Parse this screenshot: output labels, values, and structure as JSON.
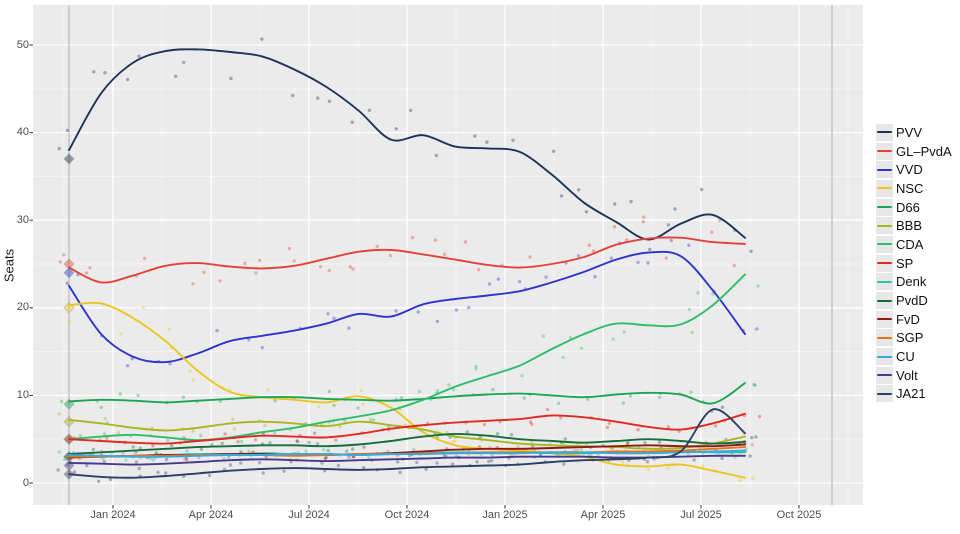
{
  "figure": {
    "background": "#ffffff",
    "panel_background": "#ebebeb",
    "grid_major_color": "#ffffff",
    "grid_minor_color": "#f4f4f4",
    "axis_text_color": "#4d4d4d",
    "tick_mark_color": "#333333",
    "reference_line_color": "#c2c2c2",
    "legend_key_background": "#e7e7e7"
  },
  "chart_data": {
    "type": "line",
    "title": "",
    "xlabel": "",
    "ylabel": "Seats",
    "ylim": [
      -2.5,
      54.5
    ],
    "y_ticks": [
      0,
      10,
      20,
      30,
      40,
      50
    ],
    "x_tick_labels": [
      "Jan 2024",
      "Apr 2024",
      "Jul 2024",
      "Oct 2024",
      "Jan 2025",
      "Apr 2025",
      "Jul 2025",
      "Oct 2025"
    ],
    "grid": "on",
    "legend_position": "right",
    "notes_markers": "diamond markers at left edge show Nov 2023 election result; faint dots are individual polls; two gray vertical reference lines mark election dates",
    "months": [
      "Nov 2023",
      "Dec 2023",
      "Jan 2024",
      "Feb 2024",
      "Mar 2024",
      "Apr 2024",
      "May 2024",
      "Jun 2024",
      "Jul 2024",
      "Aug 2024",
      "Sep 2024",
      "Oct 2024",
      "Nov 2024",
      "Dec 2024",
      "Jan 2025",
      "Feb 2025",
      "Mar 2025",
      "Apr 2025",
      "May 2025",
      "Jun 2025",
      "Jul 2025",
      "Aug 2025"
    ],
    "series": [
      {
        "name": "PVV",
        "color": "#1d3359",
        "election_seats": 37,
        "values": [
          38,
          44.5,
          48,
          49.3,
          49.5,
          49.2,
          48.7,
          47.2,
          45.2,
          42.5,
          39.2,
          39.7,
          38.4,
          38.2,
          37.8,
          35.2,
          32,
          29.8,
          27.8,
          29.6,
          30.6,
          28
        ]
      },
      {
        "name": "GL–PvdA",
        "color": "#e5413a",
        "election_seats": 25,
        "values": [
          24.6,
          22.9,
          23.7,
          24.8,
          25.1,
          24.7,
          24.5,
          24.8,
          25.6,
          26.4,
          26.6,
          26.1,
          25.5,
          24.9,
          24.6,
          25,
          25.8,
          27.2,
          27.9,
          28,
          27.5,
          27.3
        ]
      },
      {
        "name": "VVD",
        "color": "#2d35cc",
        "election_seats": 24,
        "values": [
          22.5,
          17,
          14.4,
          13.8,
          14.8,
          16.2,
          16.8,
          17.4,
          18.2,
          19.3,
          19,
          20.4,
          21,
          21.4,
          21.9,
          22.9,
          24.1,
          25.5,
          26.3,
          25.9,
          22,
          17
        ]
      },
      {
        "name": "NSC",
        "color": "#ecc51f",
        "election_seats": 20,
        "values": [
          20.3,
          20.5,
          18.8,
          16.2,
          12.8,
          10.4,
          9.8,
          9.5,
          9.2,
          9.9,
          8.6,
          5.8,
          4.3,
          3.9,
          3.7,
          3.4,
          3,
          2.1,
          1.9,
          2.1,
          1.4,
          0.6
        ]
      },
      {
        "name": "D66",
        "color": "#1ca653",
        "election_seats": 9,
        "values": [
          9.3,
          9.5,
          9.4,
          9.2,
          9.4,
          9.6,
          9.8,
          9.8,
          9.6,
          9.5,
          9.4,
          9.6,
          9.9,
          10.1,
          10.2,
          10,
          9.8,
          10.1,
          10.3,
          10.1,
          9.1,
          11.4
        ]
      },
      {
        "name": "BBB",
        "color": "#a9b622",
        "election_seats": 7,
        "values": [
          7.2,
          6.8,
          6.3,
          6,
          6.3,
          6.8,
          7,
          6.8,
          6.5,
          7,
          6.6,
          6.1,
          5.3,
          4.9,
          4.5,
          4.3,
          4.2,
          4.1,
          3.9,
          4,
          4.5,
          5.3
        ]
      },
      {
        "name": "CDA",
        "color": "#2fbd6a",
        "election_seats": 5,
        "values": [
          5,
          5.3,
          5.5,
          5.2,
          4.9,
          5.2,
          5.8,
          6.3,
          7,
          7.6,
          8.3,
          9.5,
          11,
          12.2,
          13.4,
          15.3,
          17,
          18.2,
          18,
          18.1,
          20.3,
          23.8
        ]
      },
      {
        "name": "SP",
        "color": "#e02920",
        "election_seats": 5,
        "values": [
          5,
          4.8,
          4.6,
          4.5,
          4.8,
          5.1,
          5.4,
          5.3,
          5.2,
          5.6,
          6.2,
          6.6,
          6.9,
          7.1,
          7.3,
          7.7,
          7.5,
          7,
          6.4,
          6.1,
          6.8,
          7.9
        ]
      },
      {
        "name": "Denk",
        "color": "#29c5a8",
        "election_seats": 3,
        "values": [
          3,
          3,
          3.1,
          3.2,
          3.3,
          3.3,
          3.4,
          3.3,
          3.3,
          3.2,
          3.3,
          3.4,
          3.5,
          3.5,
          3.5,
          3.4,
          3.4,
          3.5,
          3.6,
          3.6,
          3.5,
          3.5
        ]
      },
      {
        "name": "PvdD",
        "color": "#156c3d",
        "election_seats": 3,
        "values": [
          3.3,
          3.5,
          3.7,
          3.9,
          4.1,
          4.2,
          4.3,
          4.3,
          4.2,
          4.4,
          4.8,
          5.3,
          5.6,
          5.4,
          5,
          4.8,
          4.6,
          4.8,
          5,
          4.8,
          4.5,
          4.7
        ]
      },
      {
        "name": "FvD",
        "color": "#8e1a14",
        "election_seats": 3,
        "values": [
          2.9,
          3,
          3.1,
          3.2,
          3.2,
          3.3,
          3.3,
          3.2,
          3.2,
          3.3,
          3.4,
          3.6,
          3.8,
          3.9,
          3.9,
          4,
          4.1,
          4.2,
          4.3,
          4.2,
          4.2,
          4.4
        ]
      },
      {
        "name": "SGP",
        "color": "#e4731e",
        "election_seats": 3,
        "values": [
          3,
          3,
          3.1,
          3.1,
          3.2,
          3.2,
          3.2,
          3.1,
          3.2,
          3.3,
          3.3,
          3.4,
          3.4,
          3.5,
          3.5,
          3.5,
          3.5,
          3.6,
          3.6,
          3.7,
          3.9,
          4.1
        ]
      },
      {
        "name": "CU",
        "color": "#38a8e0",
        "election_seats": 3,
        "values": [
          3.2,
          3.1,
          3,
          3,
          3.1,
          3.2,
          3.2,
          3.3,
          3.3,
          3.2,
          3.3,
          3.3,
          3.4,
          3.4,
          3.4,
          3.5,
          3.5,
          3.4,
          3.4,
          3.5,
          3.6,
          3.7
        ]
      },
      {
        "name": "Volt",
        "color": "#453a8a",
        "election_seats": 2,
        "values": [
          2.3,
          2.2,
          2.1,
          2.2,
          2.4,
          2.6,
          2.7,
          2.6,
          2.5,
          2.6,
          2.7,
          2.8,
          2.9,
          2.9,
          3,
          3,
          3,
          2.9,
          2.9,
          3,
          3.1,
          3.1
        ]
      },
      {
        "name": "JA21",
        "color": "#2c3f66",
        "election_seats": 1,
        "values": [
          1,
          0.7,
          0.6,
          0.8,
          1.1,
          1.4,
          1.6,
          1.7,
          1.6,
          1.5,
          1.6,
          1.8,
          1.9,
          2,
          2.1,
          2.4,
          2.6,
          2.7,
          2.9,
          3.6,
          8.4,
          5.7
        ]
      }
    ]
  }
}
